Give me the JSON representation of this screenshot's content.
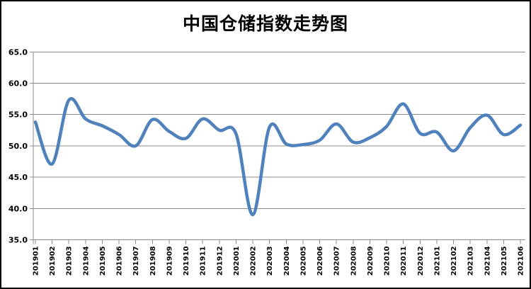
{
  "chart_data": {
    "type": "line",
    "title": "中国仓储指数走势图",
    "series_name": "中国仓储指数",
    "categories": [
      "201901",
      "201902",
      "201903",
      "201904",
      "201905",
      "201906",
      "201907",
      "201908",
      "201909",
      "201910",
      "201911",
      "201912",
      "202001",
      "202002",
      "202003",
      "202004",
      "202005",
      "202006",
      "202007",
      "202008",
      "202009",
      "202010",
      "202011",
      "202012",
      "202101",
      "202102",
      "202103",
      "202104",
      "202105",
      "202106"
    ],
    "values": [
      53.8,
      47.1,
      57.3,
      54.3,
      53.2,
      51.8,
      50.0,
      54.2,
      52.3,
      51.2,
      54.3,
      52.5,
      51.9,
      39.0,
      53.0,
      50.3,
      50.2,
      50.9,
      53.5,
      50.6,
      51.3,
      53.1,
      56.7,
      52.0,
      52.2,
      49.2,
      52.9,
      54.9,
      51.8,
      53.3
    ],
    "xlabel": "",
    "ylabel": "",
    "ylim": [
      35,
      65
    ],
    "ytick_step": 5,
    "ytick_labels": [
      "65.0",
      "60.0",
      "55.0",
      "50.0",
      "45.0",
      "40.0",
      "35.0"
    ],
    "grid": true,
    "legend_position": "none",
    "smooth": true,
    "line_color": "#4F81BD",
    "grid_color": "#8c8c8c",
    "title_color": "#000000"
  }
}
